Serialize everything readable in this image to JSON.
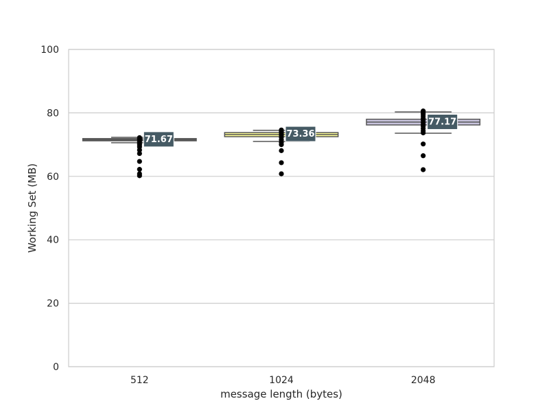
{
  "chart_data": {
    "type": "box",
    "xlabel": "message length (bytes)",
    "ylabel": "Working Set (MB)",
    "ylim": [
      0,
      100
    ],
    "yticks": [
      0,
      20,
      40,
      60,
      80,
      100
    ],
    "grid": "horizontal",
    "categories": [
      "512",
      "1024",
      "2048"
    ],
    "boxes": [
      {
        "category": "512",
        "color": "#696969",
        "q1": 71.2,
        "median": 71.5,
        "q3": 71.9,
        "whisker_low": 70.6,
        "whisker_high": 72.3,
        "mean": 71.67,
        "mean_label": "71.67",
        "outliers": [
          60.2,
          60.8,
          62.2,
          64.7,
          67.2,
          68.3,
          69.3,
          69.9,
          70.3,
          70.9,
          71.4,
          71.8,
          72.2
        ]
      },
      {
        "category": "1024",
        "color": "#ffff99",
        "q1": 72.5,
        "median": 73.2,
        "q3": 73.8,
        "whisker_low": 71.0,
        "whisker_high": 74.5,
        "mean": 73.36,
        "mean_label": "73.36",
        "outliers": [
          60.8,
          64.3,
          68.1,
          70.0,
          70.7,
          71.5,
          72.3,
          73.0,
          73.6,
          74.1,
          74.6
        ]
      },
      {
        "category": "2048",
        "color": "#c8c4dd",
        "q1": 76.2,
        "median": 77.1,
        "q3": 78.0,
        "whisker_low": 73.6,
        "whisker_high": 80.3,
        "mean": 77.17,
        "mean_label": "77.17",
        "outliers": [
          62.1,
          66.5,
          70.2,
          73.7,
          74.3,
          75.1,
          75.8,
          76.4,
          77.0,
          77.7,
          78.3,
          79.0,
          79.6,
          80.1,
          80.6
        ]
      }
    ],
    "colors": {
      "grid": "#cccccc",
      "frame": "#cccccc",
      "box_edge": "#555555",
      "outlier": "#000000",
      "label_bg": "#455a64",
      "label_text": "#ffffff"
    }
  }
}
